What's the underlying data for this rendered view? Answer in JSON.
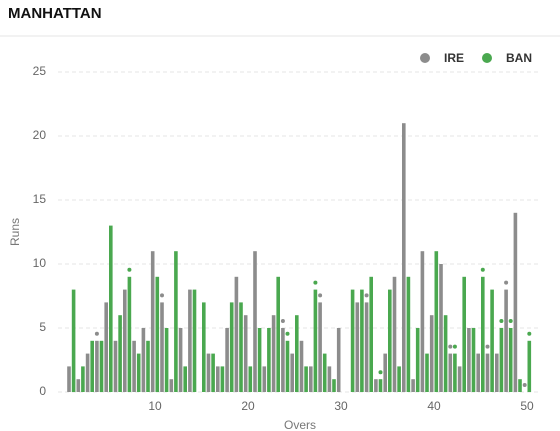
{
  "chart_data": {
    "type": "bar",
    "title": "MANHATTAN",
    "x_label": "Overs",
    "y_label": "Runs",
    "xlim": [
      0,
      51
    ],
    "xticks": [
      10,
      20,
      30,
      40,
      50
    ],
    "ylim": [
      0,
      25
    ],
    "yticks": [
      0,
      5,
      10,
      15,
      20,
      25
    ],
    "grid": true,
    "legend": "top-right",
    "x": [
      1,
      2,
      3,
      4,
      5,
      6,
      7,
      8,
      9,
      10,
      11,
      12,
      13,
      14,
      15,
      16,
      17,
      18,
      19,
      20,
      21,
      22,
      23,
      24,
      25,
      26,
      27,
      28,
      29,
      30,
      31,
      32,
      33,
      34,
      35,
      36,
      37,
      38,
      39,
      40,
      41,
      42,
      43,
      44,
      45,
      46,
      47,
      48,
      49,
      50
    ],
    "series": [
      {
        "name": "IRE",
        "color": "#8c8c8c",
        "values": [
          2,
          1,
          3,
          4,
          7,
          4,
          8,
          4,
          5,
          11,
          7,
          1,
          5,
          8,
          0,
          3,
          2,
          5,
          9,
          6,
          11,
          2,
          6,
          5,
          3,
          4,
          2,
          7,
          2,
          5,
          0,
          7,
          7,
          1,
          3,
          9,
          21,
          1,
          11,
          6,
          10,
          3,
          2,
          5,
          3,
          3,
          3,
          8,
          14,
          0
        ],
        "wickets": [
          4,
          11,
          24,
          28,
          33,
          42,
          46,
          48,
          50
        ]
      },
      {
        "name": "BAN",
        "color": "#4aa84f",
        "values": [
          8,
          2,
          4,
          4,
          13,
          6,
          9,
          3,
          4,
          9,
          5,
          11,
          2,
          8,
          7,
          3,
          2,
          7,
          7,
          2,
          5,
          5,
          9,
          4,
          6,
          2,
          8,
          3,
          1,
          0,
          8,
          8,
          9,
          1,
          8,
          2,
          9,
          5,
          3,
          11,
          6,
          3,
          9,
          5,
          9,
          8,
          5,
          5,
          1,
          4
        ],
        "wickets": [
          7,
          24,
          27,
          34,
          42,
          45,
          47,
          48,
          50
        ]
      }
    ]
  }
}
